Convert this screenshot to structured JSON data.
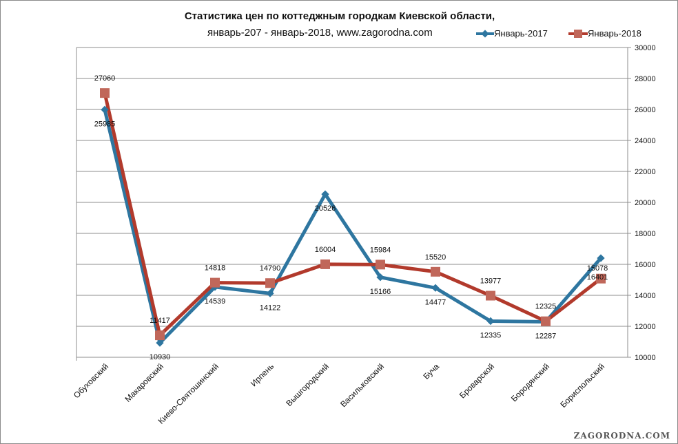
{
  "chart_data": {
    "type": "line",
    "title": "Статистика цен по коттеджным городкам Киевской области,",
    "subtitle": "январь-207 - январь-2018, www.zagorodna.com",
    "categories": [
      "Обуховский",
      "Макаровский",
      "Киево-Святошинский",
      "Ирпень",
      "Вышгородский",
      "Васильковский",
      "Буча",
      "Броварской",
      "Бородянский",
      "Бориспольский"
    ],
    "series": [
      {
        "name": "Январь-2017",
        "color": "#2e76a0",
        "values": [
          25985,
          10930,
          14539,
          14122,
          20526,
          15166,
          14477,
          12335,
          12287,
          16401
        ]
      },
      {
        "name": "Январь-2018",
        "color": "#b23a2c",
        "marker_color": "#c0675a",
        "values": [
          27060,
          11417,
          14818,
          14790,
          16004,
          15984,
          15520,
          13977,
          12325,
          15078
        ]
      }
    ],
    "ylim": [
      10000,
      30000
    ],
    "yticks": [
      10000,
      12000,
      14000,
      16000,
      18000,
      20000,
      22000,
      24000,
      26000,
      28000,
      30000
    ],
    "y_axis_side": "right",
    "grid": true,
    "legend_position": "top-right"
  },
  "watermark": "ZAGORODNA.COM"
}
